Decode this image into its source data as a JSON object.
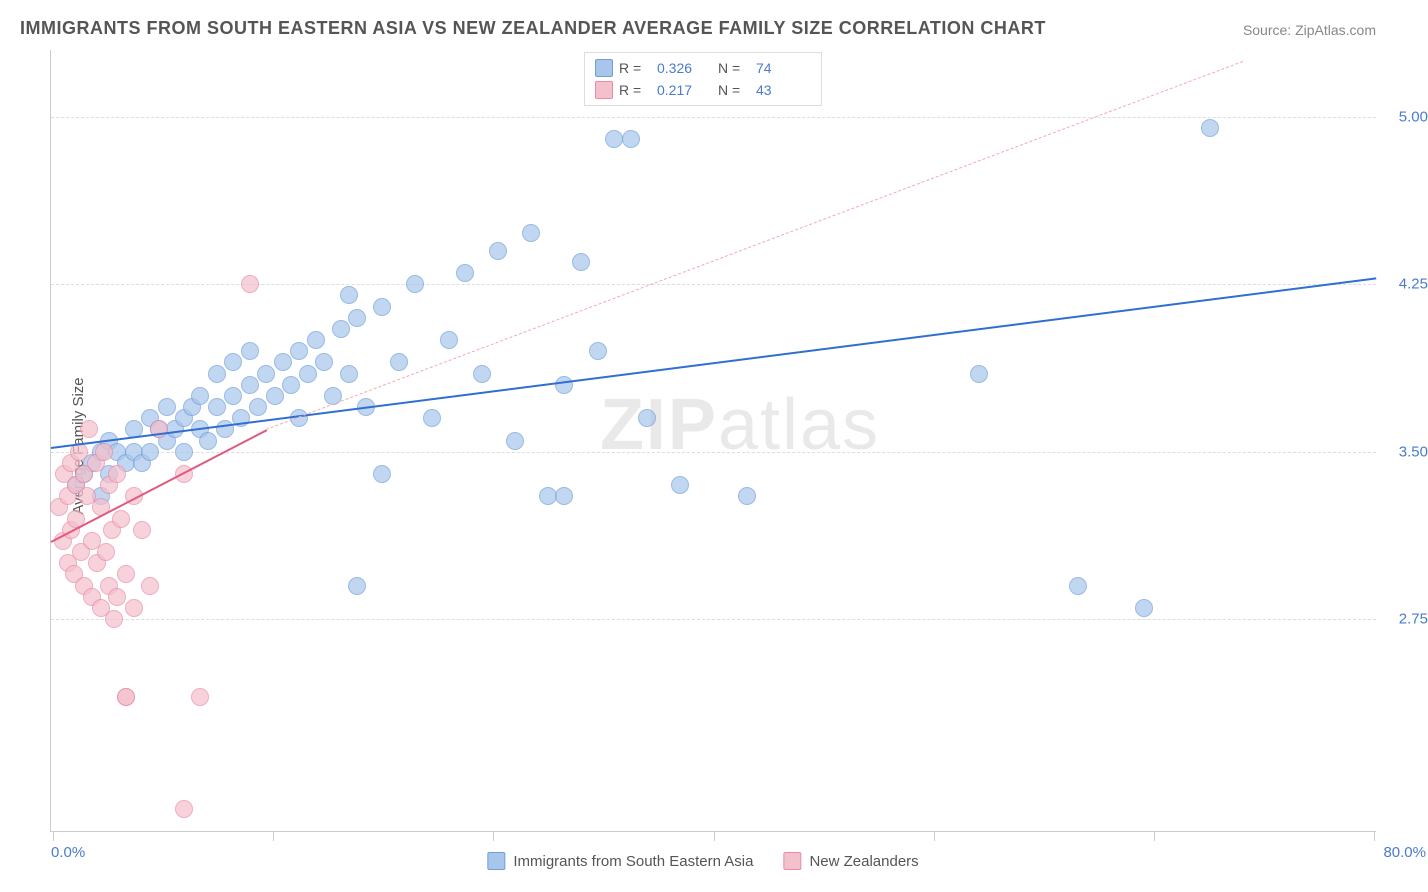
{
  "title": "IMMIGRANTS FROM SOUTH EASTERN ASIA VS NEW ZEALANDER AVERAGE FAMILY SIZE CORRELATION CHART",
  "source": "Source: ZipAtlas.com",
  "ylabel": "Average Family Size",
  "watermark_bold": "ZIP",
  "watermark_rest": "atlas",
  "chart": {
    "type": "scatter",
    "xlim": [
      0,
      80
    ],
    "ylim": [
      1.8,
      5.3
    ],
    "x_min_label": "0.0%",
    "x_max_label": "80.0%",
    "yticks": [
      2.75,
      3.5,
      4.25,
      5.0
    ],
    "ytick_labels": [
      "2.75",
      "3.50",
      "4.25",
      "5.00"
    ],
    "vgrid_x": [
      0.1,
      13.4,
      26.7,
      40,
      53.3,
      66.6,
      79.9
    ],
    "grid_color": "#dddddd",
    "series": [
      {
        "name": "Immigrants from South Eastern Asia",
        "color_fill": "#a8c5ec",
        "color_stroke": "#6f9ed8",
        "r_value": "0.326",
        "n_value": "74",
        "trend": {
          "x1": 0,
          "y1": 3.52,
          "x2": 80,
          "y2": 4.28,
          "color": "#2f6fd0",
          "width": 2,
          "solid_to_x": 80,
          "dash_color": "#2f6fd0"
        },
        "points": [
          [
            1.5,
            3.35
          ],
          [
            2,
            3.4
          ],
          [
            2.5,
            3.45
          ],
          [
            3,
            3.3
          ],
          [
            3,
            3.5
          ],
          [
            3.5,
            3.4
          ],
          [
            3.5,
            3.55
          ],
          [
            4,
            3.5
          ],
          [
            4.5,
            3.45
          ],
          [
            5,
            3.6
          ],
          [
            5,
            3.5
          ],
          [
            5.5,
            3.45
          ],
          [
            6,
            3.65
          ],
          [
            6,
            3.5
          ],
          [
            6.5,
            3.6
          ],
          [
            7,
            3.55
          ],
          [
            7,
            3.7
          ],
          [
            7.5,
            3.6
          ],
          [
            8,
            3.65
          ],
          [
            8,
            3.5
          ],
          [
            8.5,
            3.7
          ],
          [
            9,
            3.6
          ],
          [
            9,
            3.75
          ],
          [
            9.5,
            3.55
          ],
          [
            10,
            3.7
          ],
          [
            10,
            3.85
          ],
          [
            10.5,
            3.6
          ],
          [
            11,
            3.75
          ],
          [
            11,
            3.9
          ],
          [
            11.5,
            3.65
          ],
          [
            12,
            3.8
          ],
          [
            12,
            3.95
          ],
          [
            12.5,
            3.7
          ],
          [
            13,
            3.85
          ],
          [
            13.5,
            3.75
          ],
          [
            14,
            3.9
          ],
          [
            14.5,
            3.8
          ],
          [
            15,
            3.95
          ],
          [
            15,
            3.65
          ],
          [
            15.5,
            3.85
          ],
          [
            16,
            4.0
          ],
          [
            16.5,
            3.9
          ],
          [
            17,
            3.75
          ],
          [
            17.5,
            4.05
          ],
          [
            18,
            3.85
          ],
          [
            18.5,
            4.1
          ],
          [
            19,
            3.7
          ],
          [
            20,
            4.15
          ],
          [
            20,
            3.4
          ],
          [
            21,
            3.9
          ],
          [
            22,
            4.25
          ],
          [
            23,
            3.65
          ],
          [
            24,
            4.0
          ],
          [
            25,
            4.3
          ],
          [
            26,
            3.85
          ],
          [
            27,
            4.4
          ],
          [
            28,
            3.55
          ],
          [
            29,
            4.48
          ],
          [
            30,
            3.3
          ],
          [
            31,
            3.8
          ],
          [
            31,
            3.3
          ],
          [
            32,
            4.35
          ],
          [
            33,
            3.95
          ],
          [
            34,
            4.9
          ],
          [
            35,
            4.9
          ],
          [
            36,
            3.65
          ],
          [
            38,
            3.35
          ],
          [
            42,
            3.3
          ],
          [
            56,
            3.85
          ],
          [
            62,
            2.9
          ],
          [
            66,
            2.8
          ],
          [
            70,
            4.95
          ],
          [
            18,
            4.2
          ],
          [
            18.5,
            2.9
          ]
        ]
      },
      {
        "name": "New Zealanders",
        "color_fill": "#f4c0cc",
        "color_stroke": "#e88ca4",
        "r_value": "0.217",
        "n_value": "43",
        "trend": {
          "x1": 0,
          "y1": 3.1,
          "x2": 13,
          "y2": 3.6,
          "color": "#e05a7d",
          "width": 2,
          "solid_to_x": 13,
          "dash_to_x": 72,
          "dash_to_y": 5.25,
          "dash_color": "#f2a8b8"
        },
        "points": [
          [
            0.5,
            3.25
          ],
          [
            0.7,
            3.1
          ],
          [
            0.8,
            3.4
          ],
          [
            1,
            3.0
          ],
          [
            1,
            3.3
          ],
          [
            1.2,
            3.15
          ],
          [
            1.2,
            3.45
          ],
          [
            1.4,
            2.95
          ],
          [
            1.5,
            3.35
          ],
          [
            1.5,
            3.2
          ],
          [
            1.7,
            3.5
          ],
          [
            1.8,
            3.05
          ],
          [
            2,
            3.4
          ],
          [
            2,
            2.9
          ],
          [
            2.2,
            3.3
          ],
          [
            2.3,
            3.6
          ],
          [
            2.5,
            3.1
          ],
          [
            2.5,
            2.85
          ],
          [
            2.7,
            3.45
          ],
          [
            2.8,
            3.0
          ],
          [
            3,
            3.25
          ],
          [
            3,
            2.8
          ],
          [
            3.2,
            3.5
          ],
          [
            3.3,
            3.05
          ],
          [
            3.5,
            2.9
          ],
          [
            3.5,
            3.35
          ],
          [
            3.7,
            3.15
          ],
          [
            3.8,
            2.75
          ],
          [
            4,
            3.4
          ],
          [
            4,
            2.85
          ],
          [
            4.2,
            3.2
          ],
          [
            4.5,
            2.95
          ],
          [
            4.5,
            2.4
          ],
          [
            4.5,
            2.4
          ],
          [
            5,
            3.3
          ],
          [
            5,
            2.8
          ],
          [
            5.5,
            3.15
          ],
          [
            6,
            2.9
          ],
          [
            6.5,
            3.6
          ],
          [
            8,
            3.4
          ],
          [
            9,
            2.4
          ],
          [
            12,
            4.25
          ],
          [
            8,
            1.9
          ]
        ]
      }
    ]
  },
  "legend_bottom": [
    {
      "label": "Immigrants from South Eastern Asia",
      "fill": "#a8c5ec",
      "stroke": "#6f9ed8"
    },
    {
      "label": "New Zealanders",
      "fill": "#f4c0cc",
      "stroke": "#e88ca4"
    }
  ]
}
